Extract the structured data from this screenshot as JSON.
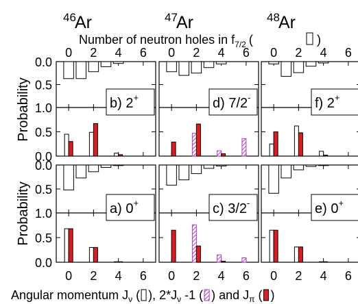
{
  "chart_data": {
    "type": "bar",
    "isotopes": [
      {
        "mass": "46",
        "symbol": "Ar"
      },
      {
        "mass": "47",
        "symbol": "Ar"
      },
      {
        "mass": "48",
        "symbol": "Ar"
      }
    ],
    "top_axis": {
      "title_main": "Number of neutron holes in f",
      "title_sub": "7/2",
      "title_end": ")",
      "title_paren_open": "(",
      "ticks": [
        "0",
        "2",
        "4",
        "6"
      ]
    },
    "bottom_axis": {
      "title_parts": [
        "Angular momentum J",
        "ν",
        " (",
        ")",
        ", 2*J",
        "ν",
        " -1 (",
        ")",
        " and J",
        "π",
        " (",
        ")"
      ],
      "ticks": [
        "0",
        "2",
        "4",
        "6"
      ]
    },
    "ylabel": "Probability",
    "y_ticks_top": [
      "0.0",
      "0.5",
      "1.0"
    ],
    "y_ticks_bottom": [
      "1.0",
      "0.5",
      "0.0"
    ],
    "colors": {
      "neutron_holes": "#ffffff",
      "j_nu": "#ffffff",
      "j_pi": "#e31a1c",
      "two_j_nu": "#b03ac8"
    },
    "panels": [
      {
        "id": "b",
        "row": 0,
        "col": 0,
        "label_letter": "b)",
        "label_j": "2",
        "label_sup": "+",
        "holes": [
          {
            "x": 0,
            "p": 0.37
          },
          {
            "x": 1,
            "p": 0.37
          },
          {
            "x": 2,
            "p": 0.22
          },
          {
            "x": 3,
            "p": 0.11
          },
          {
            "x": 4,
            "p": 0.04
          }
        ],
        "j_nu": [
          {
            "x": 0,
            "p": 0.45
          },
          {
            "x": 2,
            "p": 0.49
          },
          {
            "x": 4,
            "p": 0.06
          }
        ],
        "two_j_nu": [],
        "j_pi": [
          {
            "x": 0,
            "p": 0.3
          },
          {
            "x": 2,
            "p": 0.67
          },
          {
            "x": 4,
            "p": 0.03
          }
        ]
      },
      {
        "id": "d",
        "row": 0,
        "col": 1,
        "label_letter": "d)",
        "label_j": "7/2",
        "label_sup": "-",
        "holes": [
          {
            "x": 0,
            "p": 0.22
          },
          {
            "x": 1,
            "p": 0.3
          },
          {
            "x": 2,
            "p": 0.25
          },
          {
            "x": 3,
            "p": 0.13
          },
          {
            "x": 4,
            "p": 0.05
          }
        ],
        "j_nu": [],
        "two_j_nu": [
          {
            "x": 2,
            "p": 0.47
          },
          {
            "x": 4,
            "p": 0.11
          },
          {
            "x": 6,
            "p": 0.36
          }
        ],
        "j_pi": [
          {
            "x": 0,
            "p": 0.29
          },
          {
            "x": 2,
            "p": 0.66
          },
          {
            "x": 4,
            "p": 0.05
          }
        ]
      },
      {
        "id": "f",
        "row": 0,
        "col": 2,
        "label_letter": "f)",
        "label_j": "2",
        "label_sup": "+",
        "holes": [
          {
            "x": 0,
            "p": 0.05
          },
          {
            "x": 1,
            "p": 0.32
          },
          {
            "x": 2,
            "p": 0.24
          },
          {
            "x": 3,
            "p": 0.1
          },
          {
            "x": 4,
            "p": 0.03
          }
        ],
        "j_nu": [
          {
            "x": 0,
            "p": 0.25
          },
          {
            "x": 2,
            "p": 0.62
          },
          {
            "x": 4,
            "p": 0.1
          }
        ],
        "two_j_nu": [],
        "j_pi": [
          {
            "x": 0,
            "p": 0.5
          },
          {
            "x": 2,
            "p": 0.48
          },
          {
            "x": 4,
            "p": 0.02
          }
        ]
      },
      {
        "id": "a",
        "row": 1,
        "col": 0,
        "label_letter": "a)",
        "label_j": "0",
        "label_sup": "+",
        "holes": [
          {
            "x": 0,
            "p": 0.52
          },
          {
            "x": 1,
            "p": 0.27
          },
          {
            "x": 2,
            "p": 0.14
          },
          {
            "x": 3,
            "p": 0.05
          },
          {
            "x": 4,
            "p": 0.01
          }
        ],
        "j_nu": [
          {
            "x": 0,
            "p": 0.68
          },
          {
            "x": 2,
            "p": 0.3
          },
          {
            "x": 4,
            "p": 0.01
          }
        ],
        "two_j_nu": [],
        "j_pi": [
          {
            "x": 0,
            "p": 0.68
          },
          {
            "x": 2,
            "p": 0.3
          },
          {
            "x": 4,
            "p": 0.01
          }
        ]
      },
      {
        "id": "c",
        "row": 1,
        "col": 1,
        "label_letter": "c)",
        "label_j": "3/2",
        "label_sup": "-",
        "holes": [
          {
            "x": 0,
            "p": 0.42
          },
          {
            "x": 1,
            "p": 0.31
          },
          {
            "x": 2,
            "p": 0.18
          },
          {
            "x": 3,
            "p": 0.07
          },
          {
            "x": 4,
            "p": 0.02
          }
        ],
        "j_nu": [],
        "two_j_nu": [
          {
            "x": 2,
            "p": 0.76
          },
          {
            "x": 4,
            "p": 0.15
          },
          {
            "x": 6,
            "p": 0.09
          }
        ],
        "j_pi": [
          {
            "x": 0,
            "p": 0.65
          },
          {
            "x": 2,
            "p": 0.33
          },
          {
            "x": 4,
            "p": 0.02
          }
        ]
      },
      {
        "id": "e",
        "row": 1,
        "col": 2,
        "label_letter": "e)",
        "label_j": "0",
        "label_sup": "+",
        "holes": [
          {
            "x": 0,
            "p": 0.59
          },
          {
            "x": 1,
            "p": 0.27
          },
          {
            "x": 2,
            "p": 0.1
          },
          {
            "x": 3,
            "p": 0.03
          },
          {
            "x": 4,
            "p": 0.01
          }
        ],
        "j_nu": [
          {
            "x": 0,
            "p": 0.65
          },
          {
            "x": 2,
            "p": 0.31
          },
          {
            "x": 4,
            "p": 0.01
          }
        ],
        "two_j_nu": [],
        "j_pi": [
          {
            "x": 0,
            "p": 0.65
          },
          {
            "x": 2,
            "p": 0.31
          },
          {
            "x": 4,
            "p": 0.01
          }
        ]
      }
    ]
  }
}
